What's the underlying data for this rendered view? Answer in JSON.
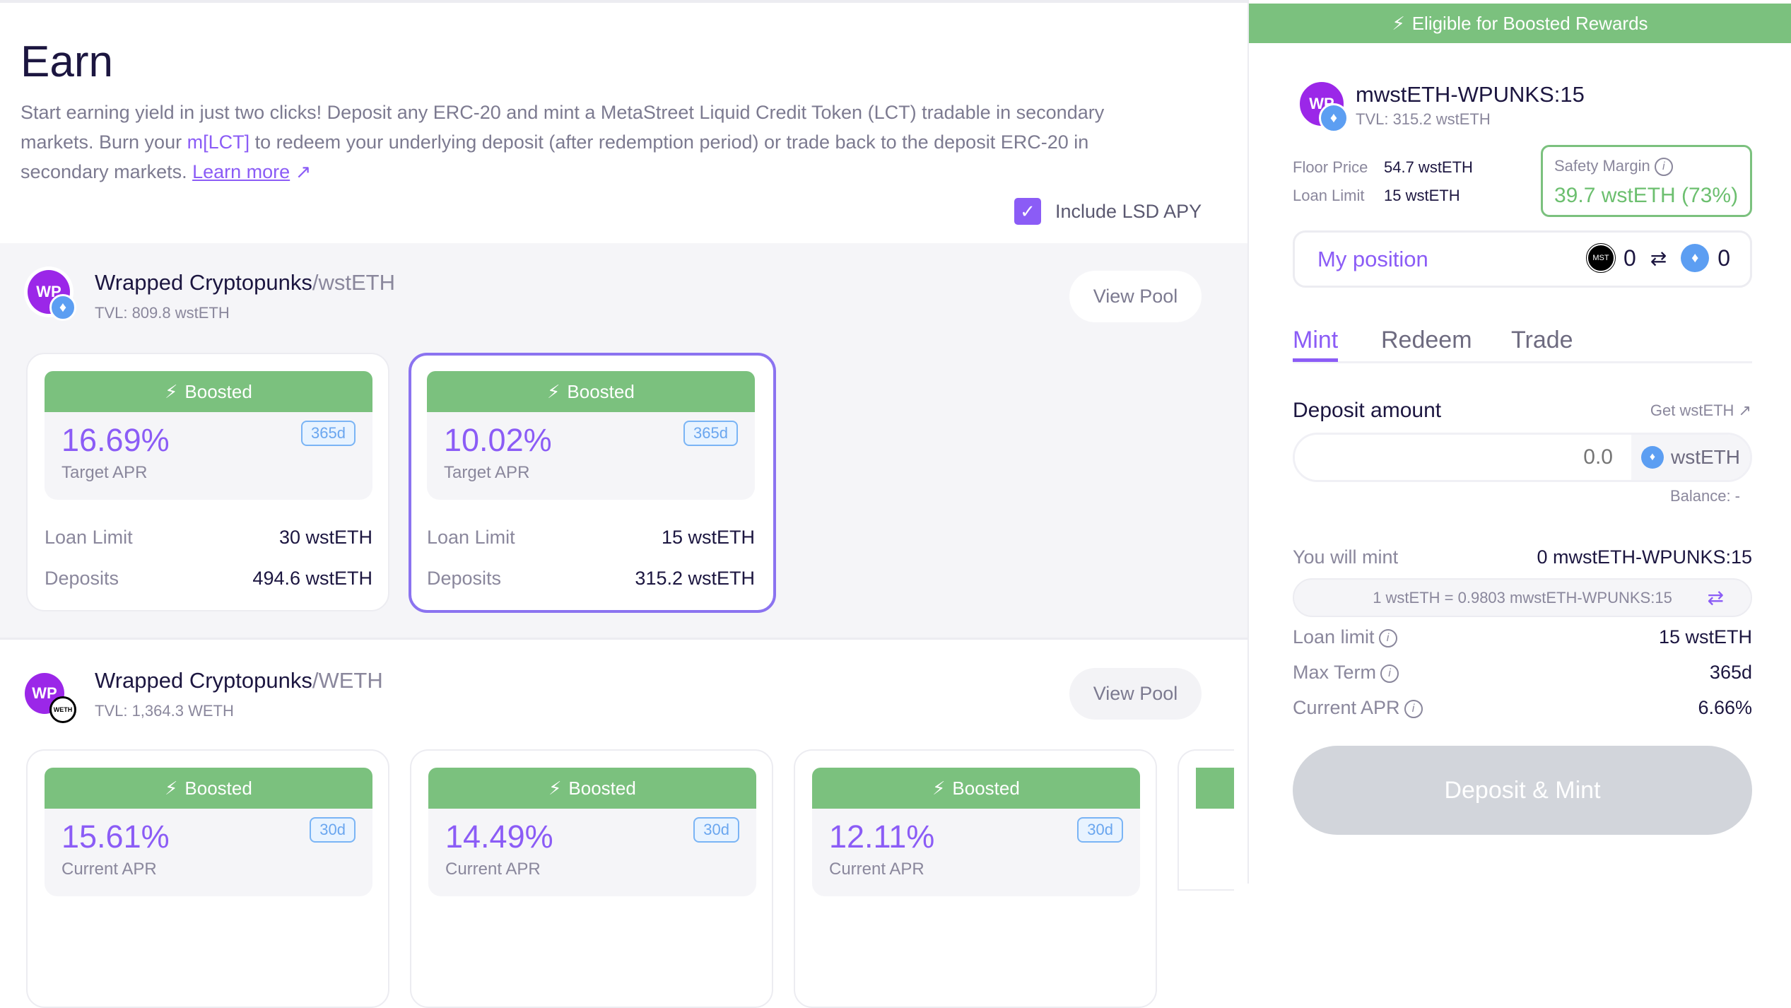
{
  "earn": {
    "title": "Earn",
    "desc_1": "Start earning yield in just two clicks! Deposit any ERC-20 and mint a MetaStreet Liquid Credit Token (LCT) tradable in secondary markets. Burn your ",
    "desc_lct": "m[LCT]",
    "desc_2": " to redeem your underlying deposit (after redemption period) or trade back to the deposit ERC-20 in secondary markets. ",
    "learn_more": "Learn more",
    "learn_more_icon": "↗",
    "include_lsd": "Include LSD APY",
    "include_lsd_checked": true
  },
  "pools": [
    {
      "logo": "WP",
      "name": "Wrapped Cryptopunks",
      "quote": "/wstETH",
      "tvl": "TVL: 809.8 wstETH",
      "view": "View Pool",
      "cards": [
        {
          "banner": "Boosted",
          "apr": "16.69%",
          "apr_label": "Target APR",
          "term": "365d",
          "loan_limit_label": "Loan Limit",
          "loan_limit": "30 wstETH",
          "deposits_label": "Deposits",
          "deposits": "494.6 wstETH",
          "selected": false
        },
        {
          "banner": "Boosted",
          "apr": "10.02%",
          "apr_label": "Target APR",
          "term": "365d",
          "loan_limit_label": "Loan Limit",
          "loan_limit": "15 wstETH",
          "deposits_label": "Deposits",
          "deposits": "315.2 wstETH",
          "selected": true
        }
      ]
    },
    {
      "logo": "WP",
      "badge": "WETH",
      "name": "Wrapped Cryptopunks",
      "quote": "/WETH",
      "tvl": "TVL: 1,364.3 WETH",
      "view": "View Pool",
      "cards": [
        {
          "banner": "Boosted",
          "apr": "15.61%",
          "apr_label": "Current APR",
          "term": "30d"
        },
        {
          "banner": "Boosted",
          "apr": "14.49%",
          "apr_label": "Current APR",
          "term": "30d"
        },
        {
          "banner": "Boosted",
          "apr": "12.11%",
          "apr_label": "Current APR",
          "term": "30d"
        }
      ]
    }
  ],
  "panel": {
    "banner": "Eligible for Boosted Rewards",
    "token": "mwstETH-WPUNKS:15",
    "tvl": "TVL: 315.2 wstETH",
    "logo": "WP",
    "floor_label": "Floor Price",
    "floor": "54.7 wstETH",
    "limit_label": "Loan Limit",
    "limit": "15 wstETH",
    "safety_label": "Safety Margin",
    "safety": "39.7 wstETH (73%)",
    "position_label": "My position",
    "mst": "MST",
    "pos_mst": "0",
    "pos_eth": "0",
    "tabs": [
      "Mint",
      "Redeem",
      "Trade"
    ],
    "active_tab": "Mint",
    "deposit_label": "Deposit amount",
    "get": "Get wstETH ↗",
    "input_placeholder": "0.0",
    "input_token": "wstETH",
    "balance": "Balance: -",
    "mint_label": "You will mint",
    "mint_value": "0 mwstETH-WPUNKS:15",
    "rate": "1 wstETH = 0.9803 mwstETH-WPUNKS:15",
    "loan_label": "Loan limit",
    "loan_value": "15 wstETH",
    "term_label": "Max Term",
    "term_value": "365d",
    "apr_label": "Current APR",
    "apr_value": "6.66%",
    "button": "Deposit & Mint"
  },
  "colors": {
    "accent": "#8b5cf6",
    "boost": "#7bc17e",
    "text": "#1c1640",
    "muted": "#8a879c"
  }
}
